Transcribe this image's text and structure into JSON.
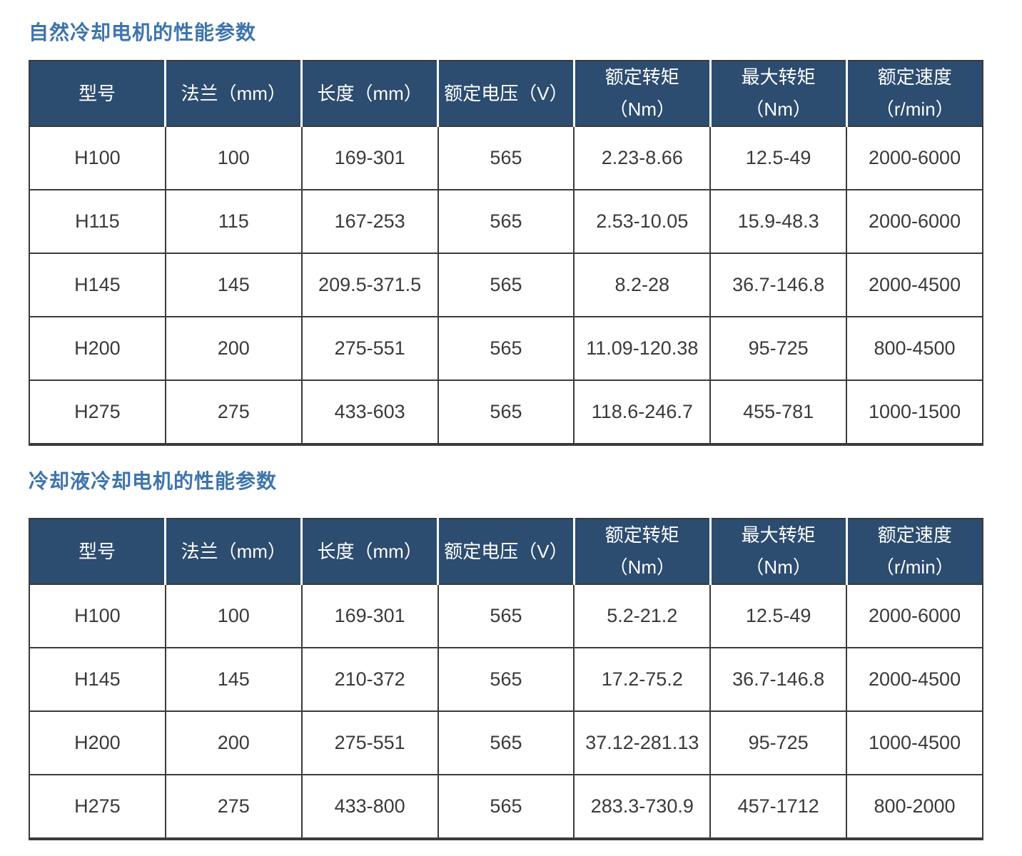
{
  "colors": {
    "header_bg": "#2c4c70",
    "header_text": "#ffffff",
    "title_color": "#3e74ad",
    "body_text": "#3a3a3a",
    "border": "#3b3b3b"
  },
  "tables": [
    {
      "title": "自然冷却电机的性能参数",
      "headers": [
        {
          "line1": "型号"
        },
        {
          "line1": "法兰（mm）"
        },
        {
          "line1": "长度（mm）"
        },
        {
          "line1": "额定电压（V）"
        },
        {
          "line1": "额定转矩",
          "line2": "（Nm）"
        },
        {
          "line1": "最大转矩",
          "line2": "（Nm）"
        },
        {
          "line1": "额定速度",
          "line2": "（r/min）"
        }
      ],
      "rows": [
        [
          "H100",
          "100",
          "169-301",
          "565",
          "2.23-8.66",
          "12.5-49",
          "2000-6000"
        ],
        [
          "H115",
          "115",
          "167-253",
          "565",
          "2.53-10.05",
          "15.9-48.3",
          "2000-6000"
        ],
        [
          "H145",
          "145",
          "209.5-371.5",
          "565",
          "8.2-28",
          "36.7-146.8",
          "2000-4500"
        ],
        [
          "H200",
          "200",
          "275-551",
          "565",
          "11.09-120.38",
          "95-725",
          "800-4500"
        ],
        [
          "H275",
          "275",
          "433-603",
          "565",
          "118.6-246.7",
          "455-781",
          "1000-1500"
        ]
      ]
    },
    {
      "title": "冷却液冷却电机的性能参数",
      "headers": [
        {
          "line1": "型号"
        },
        {
          "line1": "法兰（mm）"
        },
        {
          "line1": "长度（mm）"
        },
        {
          "line1": "额定电压（V）"
        },
        {
          "line1": "额定转矩",
          "line2": "（Nm）"
        },
        {
          "line1": "最大转矩",
          "line2": "（Nm）"
        },
        {
          "line1": "额定速度",
          "line2": "（r/min）"
        }
      ],
      "rows": [
        [
          "H100",
          "100",
          "169-301",
          "565",
          "5.2-21.2",
          "12.5-49",
          "2000-6000"
        ],
        [
          "H145",
          "145",
          "210-372",
          "565",
          "17.2-75.2",
          "36.7-146.8",
          "2000-4500"
        ],
        [
          "H200",
          "200",
          "275-551",
          "565",
          "37.12-281.13",
          "95-725",
          "1000-4500"
        ],
        [
          "H275",
          "275",
          "433-800",
          "565",
          "283.3-730.9",
          "457-1712",
          "800-2000"
        ]
      ]
    }
  ]
}
